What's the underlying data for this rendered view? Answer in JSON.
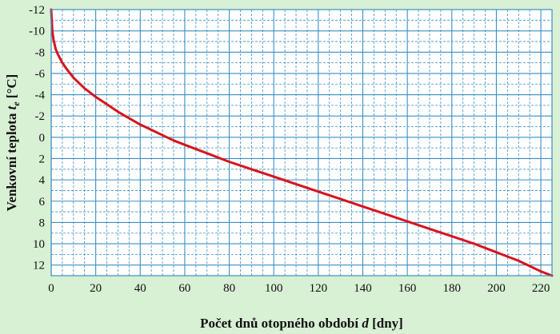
{
  "chart_data": {
    "type": "line",
    "xlabel_main": "Počet dnů otopného období ",
    "xlabel_var": "d",
    "xlabel_unit": " [dny]",
    "ylabel_main": "Venkovní teplota ",
    "ylabel_var": "t",
    "ylabel_sub": "e",
    "ylabel_unit": " [°C]",
    "xlim": [
      0,
      225
    ],
    "ylim": [
      -12,
      13
    ],
    "y_inverted": true,
    "x_ticks": [
      0,
      20,
      40,
      60,
      80,
      100,
      120,
      140,
      160,
      180,
      200,
      220
    ],
    "y_ticks": [
      -12,
      -10,
      -8,
      -6,
      -4,
      -2,
      0,
      2,
      4,
      6,
      8,
      10,
      12
    ],
    "x_tick_labels": [
      "0",
      "20",
      "40",
      "60",
      "80",
      "100",
      "120",
      "140",
      "160",
      "180",
      "200",
      "220"
    ],
    "y_tick_labels": [
      "-12",
      "-10",
      "-8",
      "-6",
      "-4",
      "-2",
      "0",
      "2",
      "4",
      "6",
      "8",
      "10",
      "12"
    ],
    "grid": true,
    "colors": {
      "background": "#d8f0d4",
      "plot_background": "#ffffff",
      "grid": "#3a8fc4",
      "line": "#d7141d"
    },
    "series": [
      {
        "color": "#d7141d",
        "points": [
          [
            0,
            -12
          ],
          [
            0.5,
            -10
          ],
          [
            1,
            -9.2
          ],
          [
            2,
            -8.3
          ],
          [
            3,
            -7.8
          ],
          [
            5,
            -7
          ],
          [
            7,
            -6.4
          ],
          [
            10,
            -5.6
          ],
          [
            15,
            -4.6
          ],
          [
            20,
            -3.8
          ],
          [
            25,
            -3.1
          ],
          [
            30,
            -2.4
          ],
          [
            35,
            -1.8
          ],
          [
            40,
            -1.2
          ],
          [
            45,
            -0.7
          ],
          [
            50,
            -0.2
          ],
          [
            55,
            0.3
          ],
          [
            60,
            0.7
          ],
          [
            70,
            1.5
          ],
          [
            80,
            2.3
          ],
          [
            90,
            3
          ],
          [
            100,
            3.7
          ],
          [
            110,
            4.4
          ],
          [
            120,
            5.1
          ],
          [
            130,
            5.8
          ],
          [
            140,
            6.5
          ],
          [
            150,
            7.2
          ],
          [
            160,
            7.9
          ],
          [
            170,
            8.6
          ],
          [
            180,
            9.3
          ],
          [
            190,
            10
          ],
          [
            200,
            10.8
          ],
          [
            210,
            11.6
          ],
          [
            215,
            12.1
          ],
          [
            220,
            12.6
          ],
          [
            225,
            13
          ]
        ]
      }
    ]
  }
}
